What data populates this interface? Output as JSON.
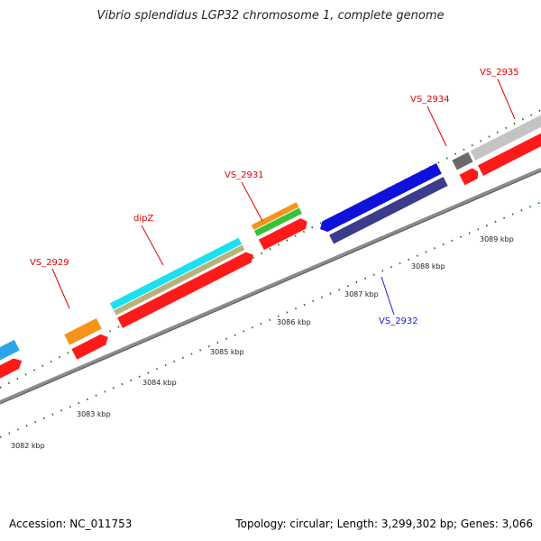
{
  "title": "Vibrio splendidus LGP32 chromosome 1, complete genome",
  "footer": {
    "accession": "Accession: NC_011753",
    "summary": "Topology: circular; Length: 3,299,302 bp; Genes: 3,066"
  },
  "colors": {
    "backbone": "#8a8a8a",
    "tick": "#1f7a1f",
    "cds": "#ff1a1a",
    "label_red": "#e00000",
    "label_blue": "#1a1adf"
  },
  "scale_labels": [
    "3082 kbp",
    "3083 kbp",
    "3084 kbp",
    "3085 kbp",
    "3086 kbp",
    "3087 kbp",
    "3088 kbp",
    "3089 kbp"
  ],
  "gene_labels": [
    {
      "name": "VS_2929",
      "color": "#e00000"
    },
    {
      "name": "dipZ",
      "color": "#e00000"
    },
    {
      "name": "VS_2931",
      "color": "#e00000"
    },
    {
      "name": "VS_2932",
      "color": "#1a1adf"
    },
    {
      "name": "VS_2934",
      "color": "#e00000"
    },
    {
      "name": "VS_2935",
      "color": "#e00000"
    }
  ]
}
